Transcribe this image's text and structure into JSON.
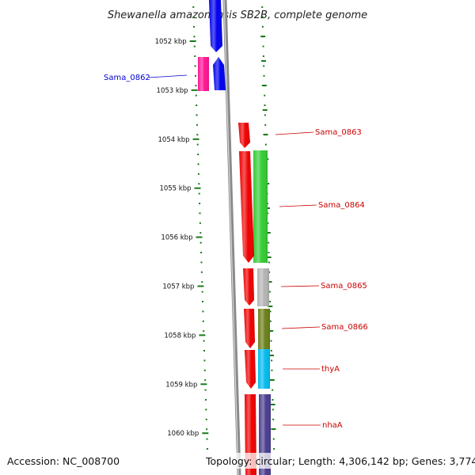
{
  "title": "Shewanella amazonensis SB2B, complete genome",
  "footer": {
    "accession": "Accession: NC_008700",
    "topology": "Topology: circular; Length: 4,306,142 bp; Genes: 3,774"
  },
  "colors": {
    "backbone": "#8a8a8a",
    "ticks": "#1a7a1a",
    "reverse_label": "#0000cc",
    "forward_label": "#cc0000"
  },
  "ticks": [
    "1052 kbp",
    "1053 kbp",
    "1054 kbp",
    "1055 kbp",
    "1056 kbp",
    "1057 kbp",
    "1058 kbp",
    "1059 kbp",
    "1060 kbp"
  ],
  "genes": [
    {
      "label": "",
      "strand": "reverse",
      "color": "#0000ee",
      "cog_color": ""
    },
    {
      "label": "Sama_0862",
      "strand": "reverse",
      "color": "#0000ee",
      "cog_color": "#ff1493"
    },
    {
      "label": "Sama_0863",
      "strand": "forward",
      "color": "#ee0000",
      "cog_color": ""
    },
    {
      "label": "Sama_0864",
      "strand": "forward",
      "color": "#ee0000",
      "cog_color": "#33cc33"
    },
    {
      "label": "Sama_0865",
      "strand": "forward",
      "color": "#ee0000",
      "cog_color": "#b3b3b3"
    },
    {
      "label": "Sama_0866",
      "strand": "forward",
      "color": "#ee0000",
      "cog_color": "#6b7f1a"
    },
    {
      "label": "thyA",
      "strand": "forward",
      "color": "#ee0000",
      "cog_color": "#00bbee"
    },
    {
      "label": "nhaA",
      "strand": "forward",
      "color": "#ee0000",
      "cog_color": "#4b3d8f"
    }
  ]
}
